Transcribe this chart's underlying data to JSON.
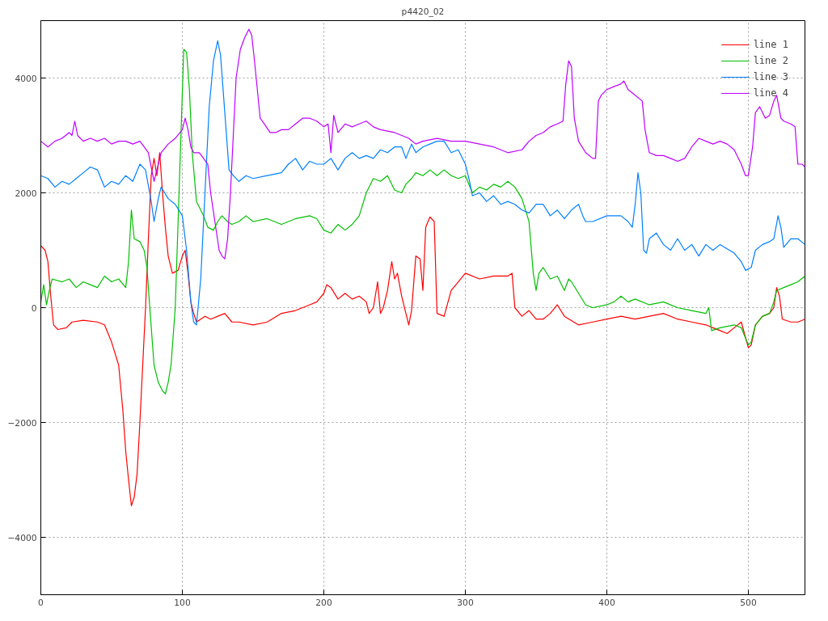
{
  "chart_data": {
    "type": "line",
    "title": "p4420_02",
    "xlim": [
      0,
      540
    ],
    "ylim": [
      -5000,
      5000
    ],
    "xticks": [
      0,
      100,
      200,
      300,
      400,
      500
    ],
    "yticks": [
      -4000,
      -2000,
      0,
      2000,
      4000
    ],
    "grid": true,
    "legend": "top right",
    "line_style": "solid",
    "marker": "none",
    "series": [
      {
        "name": "line 1",
        "color": "#ff0000",
        "x": [
          0,
          3,
          5,
          7,
          9,
          12,
          18,
          22,
          30,
          40,
          45,
          50,
          55,
          58,
          60,
          62,
          64,
          66,
          68,
          70,
          72,
          74,
          76,
          78,
          80,
          82,
          84,
          86,
          88,
          90,
          93,
          97,
          100,
          102,
          104,
          106,
          108,
          110,
          113,
          116,
          120,
          125,
          130,
          135,
          140,
          150,
          160,
          170,
          180,
          190,
          195,
          200,
          202,
          205,
          210,
          215,
          220,
          225,
          230,
          232,
          235,
          238,
          240,
          242,
          245,
          248,
          250,
          252,
          255,
          258,
          260,
          262,
          265,
          268,
          270,
          272,
          275,
          278,
          280,
          285,
          290,
          295,
          300,
          310,
          320,
          330,
          333,
          335,
          340,
          345,
          350,
          355,
          360,
          365,
          370,
          380,
          390,
          400,
          410,
          420,
          430,
          440,
          450,
          460,
          470,
          475,
          480,
          485,
          490,
          495,
          500,
          502,
          505,
          510,
          515,
          518,
          520,
          522,
          524,
          530,
          535,
          540
        ],
        "values": [
          1080,
          1000,
          800,
          200,
          -300,
          -380,
          -350,
          -250,
          -220,
          -250,
          -300,
          -600,
          -1000,
          -1800,
          -2500,
          -3000,
          -3450,
          -3300,
          -2900,
          -2000,
          -1000,
          0,
          1200,
          2300,
          2600,
          2300,
          2700,
          2000,
          1400,
          900,
          600,
          650,
          900,
          1000,
          600,
          100,
          -100,
          -250,
          -200,
          -150,
          -200,
          -150,
          -100,
          -250,
          -250,
          -300,
          -250,
          -100,
          -50,
          50,
          100,
          250,
          400,
          350,
          150,
          250,
          150,
          200,
          100,
          -100,
          0,
          450,
          -100,
          0,
          300,
          800,
          500,
          600,
          200,
          -100,
          -300,
          -50,
          900,
          850,
          300,
          1400,
          1580,
          1500,
          -100,
          -150,
          300,
          450,
          600,
          500,
          550,
          550,
          600,
          0,
          -150,
          -50,
          -200,
          -200,
          -100,
          50,
          -150,
          -300,
          -250,
          -200,
          -150,
          -200,
          -150,
          -100,
          -200,
          -250,
          -300,
          -350,
          -400,
          -450,
          -350,
          -250,
          -700,
          -650,
          -300,
          -150,
          -100,
          0,
          350,
          200,
          -200,
          -250,
          -250,
          -200
        ]
      },
      {
        "name": "line 2",
        "color": "#00c000",
        "x": [
          0,
          2,
          4,
          6,
          8,
          15,
          20,
          25,
          30,
          35,
          40,
          45,
          50,
          55,
          60,
          62,
          64,
          66,
          70,
          73,
          75,
          77,
          80,
          83,
          86,
          88,
          90,
          92,
          95,
          97,
          99,
          101,
          103,
          105,
          107,
          110,
          113,
          115,
          118,
          122,
          125,
          128,
          132,
          135,
          140,
          145,
          150,
          160,
          170,
          180,
          190,
          195,
          200,
          205,
          210,
          215,
          220,
          225,
          230,
          235,
          240,
          245,
          250,
          255,
          258,
          262,
          265,
          270,
          275,
          280,
          285,
          290,
          295,
          300,
          305,
          310,
          315,
          320,
          325,
          330,
          335,
          340,
          345,
          348,
          350,
          352,
          355,
          360,
          365,
          370,
          373,
          375,
          380,
          385,
          390,
          400,
          405,
          410,
          415,
          420,
          430,
          440,
          450,
          460,
          470,
          472,
          474,
          480,
          490,
          495,
          500,
          502,
          505,
          510,
          515,
          518,
          520,
          525,
          530,
          535,
          540
        ],
        "values": [
          100,
          400,
          50,
          300,
          500,
          450,
          500,
          350,
          450,
          400,
          350,
          550,
          450,
          500,
          350,
          800,
          1700,
          1200,
          1150,
          1000,
          700,
          0,
          -1000,
          -1300,
          -1450,
          -1500,
          -1300,
          -1000,
          0,
          1500,
          3000,
          4500,
          4450,
          3800,
          2700,
          1850,
          1700,
          1600,
          1400,
          1350,
          1500,
          1600,
          1500,
          1450,
          1500,
          1600,
          1500,
          1550,
          1450,
          1550,
          1600,
          1550,
          1350,
          1300,
          1450,
          1350,
          1450,
          1600,
          2000,
          2250,
          2200,
          2300,
          2050,
          2000,
          2150,
          2250,
          2350,
          2300,
          2400,
          2300,
          2400,
          2300,
          2250,
          2300,
          2000,
          2100,
          2050,
          2150,
          2100,
          2200,
          2100,
          1900,
          1500,
          600,
          300,
          600,
          700,
          500,
          550,
          300,
          500,
          450,
          250,
          50,
          0,
          50,
          100,
          200,
          100,
          150,
          50,
          100,
          0,
          -50,
          -100,
          0,
          -400,
          -350,
          -300,
          -350,
          -650,
          -600,
          -300,
          -150,
          -100,
          100,
          300,
          350,
          400,
          450,
          550
        ]
      },
      {
        "name": "line 3",
        "color": "#0080ff",
        "x": [
          0,
          5,
          10,
          15,
          20,
          25,
          30,
          35,
          40,
          45,
          50,
          55,
          60,
          65,
          70,
          74,
          78,
          80,
          83,
          85,
          90,
          95,
          100,
          103,
          106,
          108,
          110,
          113,
          116,
          119,
          122,
          125,
          127,
          130,
          133,
          136,
          140,
          145,
          150,
          160,
          170,
          175,
          180,
          185,
          190,
          195,
          200,
          205,
          210,
          215,
          220,
          225,
          230,
          235,
          240,
          245,
          250,
          255,
          258,
          262,
          265,
          270,
          275,
          280,
          285,
          290,
          295,
          300,
          303,
          305,
          310,
          315,
          320,
          325,
          330,
          335,
          340,
          345,
          350,
          355,
          360,
          365,
          370,
          375,
          380,
          383,
          385,
          390,
          400,
          410,
          415,
          418,
          420,
          422,
          424,
          426,
          428,
          430,
          435,
          440,
          445,
          450,
          455,
          460,
          465,
          470,
          475,
          480,
          490,
          495,
          498,
          502,
          505,
          510,
          515,
          518,
          521,
          523,
          525,
          530,
          535,
          540
        ],
        "values": [
          2300,
          2250,
          2100,
          2200,
          2150,
          2250,
          2350,
          2450,
          2400,
          2100,
          2200,
          2150,
          2300,
          2200,
          2500,
          2400,
          1850,
          1500,
          1900,
          2100,
          1900,
          1800,
          1600,
          1000,
          100,
          -250,
          -300,
          500,
          2000,
          3500,
          4300,
          4650,
          4400,
          3400,
          2400,
          2300,
          2200,
          2300,
          2250,
          2300,
          2350,
          2500,
          2600,
          2400,
          2550,
          2500,
          2500,
          2600,
          2400,
          2600,
          2700,
          2600,
          2650,
          2600,
          2750,
          2700,
          2800,
          2800,
          2600,
          2850,
          2700,
          2800,
          2850,
          2900,
          2900,
          2700,
          2750,
          2500,
          2200,
          1950,
          2000,
          1850,
          1950,
          1800,
          1850,
          1800,
          1700,
          1650,
          1800,
          1800,
          1600,
          1700,
          1550,
          1700,
          1800,
          1600,
          1500,
          1500,
          1600,
          1600,
          1500,
          1400,
          1800,
          2350,
          2000,
          1000,
          950,
          1200,
          1300,
          1100,
          1000,
          1200,
          1000,
          1100,
          900,
          1100,
          1000,
          1100,
          950,
          800,
          650,
          700,
          1000,
          1100,
          1150,
          1200,
          1600,
          1400,
          1050,
          1200,
          1200,
          1100
        ]
      },
      {
        "name": "line 4",
        "color": "#c000ff",
        "x": [
          0,
          5,
          10,
          15,
          20,
          22,
          24,
          26,
          30,
          35,
          40,
          45,
          50,
          55,
          60,
          65,
          70,
          73,
          76,
          78,
          80,
          82,
          85,
          90,
          95,
          100,
          102,
          104,
          106,
          108,
          112,
          115,
          118,
          120,
          123,
          126,
          128,
          130,
          132,
          134,
          136,
          138,
          141,
          144,
          147,
          149,
          151,
          153,
          155,
          158,
          162,
          166,
          170,
          175,
          180,
          185,
          190,
          195,
          200,
          203,
          205,
          207,
          210,
          215,
          220,
          225,
          230,
          235,
          240,
          250,
          255,
          260,
          265,
          270,
          280,
          290,
          300,
          310,
          320,
          330,
          340,
          345,
          350,
          355,
          360,
          365,
          369,
          371,
          373,
          375,
          377,
          380,
          385,
          390,
          392,
          394,
          396,
          400,
          405,
          410,
          412,
          415,
          420,
          425,
          427,
          430,
          435,
          440,
          445,
          450,
          455,
          460,
          465,
          470,
          475,
          480,
          485,
          490,
          495,
          498,
          500,
          503,
          505,
          508,
          512,
          515,
          518,
          520,
          523,
          525,
          530,
          533,
          535,
          538,
          540
        ],
        "values": [
          2900,
          2800,
          2900,
          2950,
          3050,
          3000,
          3250,
          3000,
          2900,
          2950,
          2900,
          2950,
          2850,
          2900,
          2900,
          2850,
          2900,
          2800,
          2700,
          2450,
          2200,
          2400,
          2700,
          2850,
          2950,
          3100,
          3300,
          3100,
          2800,
          2700,
          2700,
          2600,
          2500,
          2000,
          1500,
          1000,
          900,
          850,
          1200,
          2000,
          3000,
          4000,
          4500,
          4700,
          4850,
          4750,
          4300,
          3800,
          3300,
          3200,
          3050,
          3050,
          3100,
          3100,
          3200,
          3300,
          3300,
          3250,
          3150,
          3200,
          2700,
          3350,
          3050,
          3200,
          3150,
          3200,
          3250,
          3150,
          3100,
          3050,
          3000,
          2950,
          2850,
          2900,
          2950,
          2900,
          2900,
          2850,
          2800,
          2700,
          2750,
          2900,
          3000,
          3050,
          3150,
          3200,
          3250,
          3900,
          4300,
          4200,
          3300,
          2900,
          2700,
          2600,
          2600,
          3600,
          3700,
          3800,
          3850,
          3900,
          3950,
          3800,
          3700,
          3600,
          3100,
          2700,
          2650,
          2650,
          2600,
          2550,
          2600,
          2800,
          2950,
          2900,
          2850,
          2900,
          2850,
          2750,
          2500,
          2300,
          2300,
          2800,
          3400,
          3500,
          3300,
          3350,
          3600,
          3700,
          3300,
          3250,
          3200,
          3150,
          2500,
          2500,
          2450
        ]
      }
    ]
  }
}
